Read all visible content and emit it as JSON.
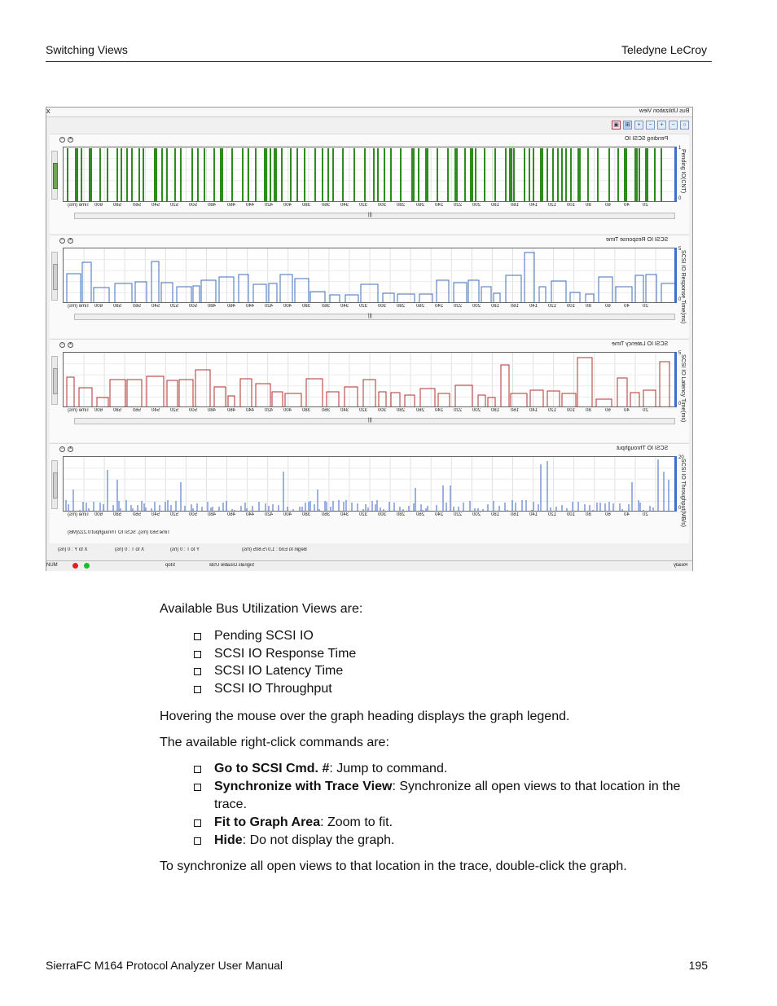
{
  "header": {
    "left": "Switching Views",
    "right": "Teledyne LeCroy"
  },
  "screenshot": {
    "window_title": "Bus Utilization View",
    "close_glyph": "x",
    "toolbar": [
      {
        "icon": "export-icon",
        "glyph": "▣"
      },
      {
        "icon": "fit-icon",
        "glyph": "⊞"
      },
      {
        "icon": "zoom-in-icon",
        "glyph": "+"
      },
      {
        "icon": "zoom-out-icon",
        "glyph": "−"
      },
      {
        "icon": "zoom-in-icon",
        "glyph": "+"
      },
      {
        "icon": "zoom-out-icon",
        "glyph": "−"
      },
      {
        "icon": "zoom-reset-icon",
        "glyph": "○"
      }
    ],
    "ticks": [
      "20",
      "40",
      "60",
      "80",
      "100",
      "120",
      "140",
      "160",
      "180",
      "200",
      "220",
      "240",
      "260",
      "280",
      "300",
      "320",
      "340",
      "360",
      "380",
      "400",
      "420",
      "440",
      "460",
      "480",
      "500",
      "520",
      "540",
      "560",
      "580",
      "600"
    ],
    "panels": [
      {
        "title": "Pending SCSI IO",
        "ylabel": "Pending IO(CNT)",
        "ymax": "1",
        "ymin": "0",
        "time_label": "Time (ms)",
        "footer": "",
        "scroll_glyph": "|||"
      },
      {
        "title": "SCSI IO Response Time",
        "ylabel": "SCSI IO Response Time(ms)",
        "ymax": "5",
        "ymin": "0",
        "time_label": "Time (ms)",
        "footer": "",
        "scroll_glyph": "|||"
      },
      {
        "title": "SCSI IO Latency Time",
        "ylabel": "SCSI IO Latency Time(ms)",
        "ymax": "5",
        "ymin": "0",
        "time_label": "Time (ms)",
        "footer": "",
        "scroll_glyph": "|||"
      },
      {
        "title": "SCSI IO Throughput",
        "ylabel": "SCSI IO Throughput(MB/s)",
        "ymax": "20",
        "ymin": "0",
        "time_label": "Time (ms)",
        "footer": "Time:563 (ms), SCSI IO Throughput:0.222(MB)",
        "scroll_glyph": "|||"
      }
    ],
    "status_row": {
      "xy": "X to Y : 0 (ns)",
      "xt": "X to T : 0 (ns)",
      "yt": "Y to T : 0 (ns)",
      "begin_end": "Begin to End : 1,075.605 (ms)"
    },
    "status_bar": {
      "ready": "Ready",
      "signals": "Signals Disable USB",
      "stop": "Stop",
      "num": "NUM"
    }
  },
  "body": {
    "intro": "Available Bus Utilization Views are:",
    "views": [
      "Pending SCSI IO",
      "SCSI IO Response Time",
      "SCSI IO Latency Time",
      "SCSI IO Throughput"
    ],
    "hover_note": "Hovering the mouse over the graph heading displays the graph legend.",
    "commands_intro": "The available right-click commands are:",
    "commands": [
      {
        "name": "Go to SCSI Cmd. #",
        "desc": ": Jump to command."
      },
      {
        "name": "Synchronize with Trace View",
        "desc": ": Synchronize all open views to that location in the trace."
      },
      {
        "name": "Fit to Graph Area",
        "desc": ": Zoom to fit."
      },
      {
        "name": "Hide",
        "desc": ": Do not display the graph."
      }
    ],
    "sync_note": "To synchronize all open views to that location in the trace, double-click the graph."
  },
  "footer": {
    "left": "SierraFC M164 Protocol Analyzer User Manual",
    "right": "195"
  },
  "colors": {
    "pending": "#2e8b1e",
    "response": "#3f6fb8",
    "latency": "#b03030",
    "throughput": "#3a66c4"
  }
}
